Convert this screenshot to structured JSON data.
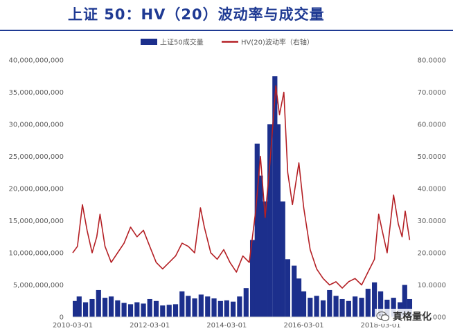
{
  "header": {
    "title": "上证 50：HV（20）波动率与成交量"
  },
  "watermark": {
    "text": "真格量化",
    "icon": "wechat-icon"
  },
  "colors": {
    "title": "#1f3a93",
    "volume": "#1c2f8c",
    "volatility": "#b41f24",
    "axis_text": "#595959"
  },
  "chart_data": {
    "type": "bar+line",
    "title": "",
    "legend_position": "top-center",
    "legend": [
      {
        "name": "上证50成交量",
        "kind": "bar",
        "color": "#1c2f8c"
      },
      {
        "name": "HV(20)波动率（右轴）",
        "kind": "line",
        "color": "#b41f24"
      }
    ],
    "x_axis": {
      "ticks": [
        "2010-03-01",
        "2012-03-01",
        "2014-03-01",
        "2016-03-01",
        "2018-03-01"
      ],
      "range": [
        "2010-03-01",
        "2018-12-31"
      ]
    },
    "y_left": {
      "min": 0,
      "max": 40000000000,
      "ticks": [
        {
          "value": 0,
          "label": "0"
        },
        {
          "value": 5000000000,
          "label": "5,000,000,000"
        },
        {
          "value": 10000000000,
          "label": "10,000,000,000"
        },
        {
          "value": 15000000000,
          "label": "15,000,000,000"
        },
        {
          "value": 20000000000,
          "label": "20,000,000,000"
        },
        {
          "value": 25000000000,
          "label": "25,000,000,000"
        },
        {
          "value": 30000000000,
          "label": "30,000,000,000"
        },
        {
          "value": 35000000000,
          "label": "35,000,000,000"
        },
        {
          "value": 40000000000,
          "label": "40,000,000,000"
        }
      ]
    },
    "y_right": {
      "min": 0,
      "max": 80,
      "ticks": [
        {
          "value": 0,
          "label": "0.0000"
        },
        {
          "value": 10,
          "label": "10.0000"
        },
        {
          "value": 20,
          "label": "20.0000"
        },
        {
          "value": 30,
          "label": "30.0000"
        },
        {
          "value": 40,
          "label": "40.0000"
        },
        {
          "value": 50,
          "label": "50.0000"
        },
        {
          "value": 60,
          "label": "60.0000"
        },
        {
          "value": 70,
          "label": "70.0000"
        },
        {
          "value": 80,
          "label": "80.0000"
        }
      ]
    },
    "series": [
      {
        "name": "上证50成交量",
        "type": "bar",
        "axis": "left",
        "points": [
          [
            "2010-03-01",
            2500000000
          ],
          [
            "2010-05-01",
            3200000000
          ],
          [
            "2010-07-01",
            2300000000
          ],
          [
            "2010-09-01",
            2800000000
          ],
          [
            "2010-11-01",
            4200000000
          ],
          [
            "2011-01-01",
            3000000000
          ],
          [
            "2011-03-01",
            3200000000
          ],
          [
            "2011-05-01",
            2600000000
          ],
          [
            "2011-07-01",
            2200000000
          ],
          [
            "2011-09-01",
            2000000000
          ],
          [
            "2011-11-01",
            2300000000
          ],
          [
            "2012-01-01",
            2100000000
          ],
          [
            "2012-03-01",
            2800000000
          ],
          [
            "2012-05-01",
            2500000000
          ],
          [
            "2012-07-01",
            1800000000
          ],
          [
            "2012-09-01",
            1900000000
          ],
          [
            "2012-11-01",
            2000000000
          ],
          [
            "2013-01-01",
            4000000000
          ],
          [
            "2013-03-01",
            3300000000
          ],
          [
            "2013-05-01",
            2900000000
          ],
          [
            "2013-07-01",
            3500000000
          ],
          [
            "2013-09-01",
            3200000000
          ],
          [
            "2013-11-01",
            2900000000
          ],
          [
            "2014-01-01",
            2500000000
          ],
          [
            "2014-03-01",
            2600000000
          ],
          [
            "2014-05-01",
            2400000000
          ],
          [
            "2014-07-01",
            3200000000
          ],
          [
            "2014-09-01",
            4500000000
          ],
          [
            "2014-11-01",
            12000000000
          ],
          [
            "2014-12-15",
            27000000000
          ],
          [
            "2015-01-15",
            22000000000
          ],
          [
            "2015-03-01",
            18000000000
          ],
          [
            "2015-04-15",
            30000000000
          ],
          [
            "2015-06-01",
            37500000000
          ],
          [
            "2015-07-01",
            30000000000
          ],
          [
            "2015-08-15",
            18000000000
          ],
          [
            "2015-10-01",
            9000000000
          ],
          [
            "2015-12-01",
            8000000000
          ],
          [
            "2016-01-15",
            6000000000
          ],
          [
            "2016-03-01",
            4000000000
          ],
          [
            "2016-05-01",
            3000000000
          ],
          [
            "2016-07-01",
            3300000000
          ],
          [
            "2016-09-01",
            2600000000
          ],
          [
            "2016-11-01",
            4200000000
          ],
          [
            "2017-01-01",
            3300000000
          ],
          [
            "2017-03-01",
            2800000000
          ],
          [
            "2017-05-01",
            2500000000
          ],
          [
            "2017-07-01",
            3200000000
          ],
          [
            "2017-09-01",
            3000000000
          ],
          [
            "2017-11-01",
            4400000000
          ],
          [
            "2018-01-01",
            5400000000
          ],
          [
            "2018-03-01",
            4000000000
          ],
          [
            "2018-05-01",
            2700000000
          ],
          [
            "2018-07-01",
            3000000000
          ],
          [
            "2018-09-01",
            2300000000
          ],
          [
            "2018-10-15",
            5000000000
          ],
          [
            "2018-12-01",
            2800000000
          ]
        ]
      },
      {
        "name": "HV(20)波动率（右轴）",
        "type": "line",
        "axis": "right",
        "points": [
          [
            "2010-03-01",
            20
          ],
          [
            "2010-04-15",
            22
          ],
          [
            "2010-06-01",
            35
          ],
          [
            "2010-07-15",
            27
          ],
          [
            "2010-09-01",
            20
          ],
          [
            "2010-10-15",
            25
          ],
          [
            "2010-11-15",
            32
          ],
          [
            "2011-01-01",
            22
          ],
          [
            "2011-03-01",
            17
          ],
          [
            "2011-05-01",
            20
          ],
          [
            "2011-07-01",
            23
          ],
          [
            "2011-09-01",
            28
          ],
          [
            "2011-11-01",
            25
          ],
          [
            "2012-01-01",
            27
          ],
          [
            "2012-03-01",
            22
          ],
          [
            "2012-05-01",
            17
          ],
          [
            "2012-07-01",
            15
          ],
          [
            "2012-09-01",
            17
          ],
          [
            "2012-11-01",
            19
          ],
          [
            "2013-01-01",
            23
          ],
          [
            "2013-03-01",
            22
          ],
          [
            "2013-05-01",
            20
          ],
          [
            "2013-06-25",
            34
          ],
          [
            "2013-08-01",
            28
          ],
          [
            "2013-10-01",
            20
          ],
          [
            "2013-12-01",
            18
          ],
          [
            "2014-02-01",
            21
          ],
          [
            "2014-04-01",
            17
          ],
          [
            "2014-06-01",
            14
          ],
          [
            "2014-08-01",
            19
          ],
          [
            "2014-10-01",
            17
          ],
          [
            "2014-12-01",
            33
          ],
          [
            "2015-01-15",
            50
          ],
          [
            "2015-03-01",
            31
          ],
          [
            "2015-04-15",
            48
          ],
          [
            "2015-06-10",
            72
          ],
          [
            "2015-07-15",
            63
          ],
          [
            "2015-08-25",
            70
          ],
          [
            "2015-10-01",
            45
          ],
          [
            "2015-11-15",
            35
          ],
          [
            "2016-01-15",
            48
          ],
          [
            "2016-03-01",
            34
          ],
          [
            "2016-05-01",
            21
          ],
          [
            "2016-07-01",
            15
          ],
          [
            "2016-09-01",
            12
          ],
          [
            "2016-11-01",
            10
          ],
          [
            "2017-01-01",
            11
          ],
          [
            "2017-03-01",
            9
          ],
          [
            "2017-05-01",
            11
          ],
          [
            "2017-07-01",
            12
          ],
          [
            "2017-09-01",
            10
          ],
          [
            "2017-11-01",
            14
          ],
          [
            "2018-01-01",
            18
          ],
          [
            "2018-02-10",
            32
          ],
          [
            "2018-03-15",
            27
          ],
          [
            "2018-05-01",
            20
          ],
          [
            "2018-07-01",
            38
          ],
          [
            "2018-08-15",
            29
          ],
          [
            "2018-09-20",
            25
          ],
          [
            "2018-10-20",
            33
          ],
          [
            "2018-12-01",
            24
          ]
        ]
      }
    ]
  }
}
